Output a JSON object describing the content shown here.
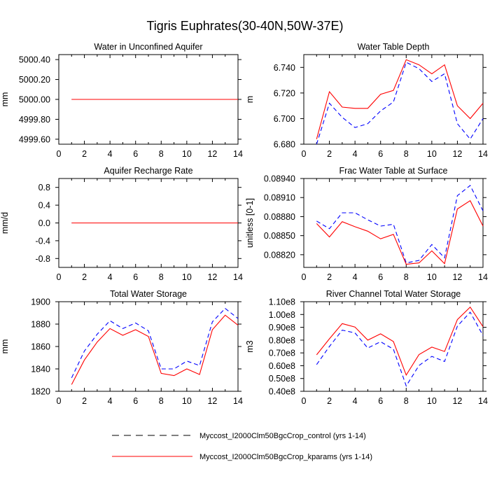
{
  "title": "Tigris Euphrates(30-40N,50W-37E)",
  "legend": {
    "control": "Myccost_I2000Clm50BgcCrop_control (yrs 1-14)",
    "kparams": "Myccost_I2000Clm50BgcCrop_kparams (yrs 1-14)"
  },
  "colors": {
    "control": "#0000ff",
    "kparams": "#ff0000"
  },
  "chart_data": [
    {
      "type": "line",
      "title": "Water in Unconfined Aquifer",
      "ylabel": "mm",
      "xlim": [
        0,
        14
      ],
      "ylim": [
        4999.55,
        5000.45
      ],
      "xticks": [
        "0",
        "2",
        "4",
        "6",
        "8",
        "10",
        "12",
        "14"
      ],
      "yticks": [
        4999.6,
        4999.8,
        5000.0,
        5000.2,
        5000.4
      ],
      "ytick_labels": [
        "4999.60",
        "4999.80",
        "5000.00",
        "5000.20",
        "5000.40"
      ],
      "x": [
        1,
        2,
        3,
        4,
        5,
        6,
        7,
        8,
        9,
        10,
        11,
        12,
        13,
        14
      ],
      "series": [
        {
          "name": "control",
          "values": [
            5000,
            5000,
            5000,
            5000,
            5000,
            5000,
            5000,
            5000,
            5000,
            5000,
            5000,
            5000,
            5000,
            5000
          ]
        },
        {
          "name": "kparams",
          "values": [
            5000,
            5000,
            5000,
            5000,
            5000,
            5000,
            5000,
            5000,
            5000,
            5000,
            5000,
            5000,
            5000,
            5000
          ]
        }
      ]
    },
    {
      "type": "line",
      "title": "Water Table Depth",
      "ylabel": "m",
      "xlim": [
        0,
        14
      ],
      "ylim": [
        6.68,
        6.75
      ],
      "xticks": [
        "0",
        "2",
        "4",
        "6",
        "8",
        "10",
        "12",
        "14"
      ],
      "yticks": [
        6.68,
        6.7,
        6.72,
        6.74
      ],
      "ytick_labels": [
        "6.680",
        "6.700",
        "6.720",
        "6.740"
      ],
      "x": [
        1,
        2,
        3,
        4,
        5,
        6,
        7,
        8,
        9,
        10,
        11,
        12,
        13,
        14
      ],
      "series": [
        {
          "name": "control",
          "values": [
            6.68,
            6.712,
            6.701,
            6.693,
            6.696,
            6.706,
            6.713,
            6.744,
            6.739,
            6.729,
            6.735,
            6.696,
            6.684,
            6.7
          ]
        },
        {
          "name": "kparams",
          "values": [
            6.684,
            6.721,
            6.709,
            6.708,
            6.708,
            6.719,
            6.722,
            6.746,
            6.742,
            6.735,
            6.742,
            6.71,
            6.7,
            6.712
          ]
        }
      ]
    },
    {
      "type": "line",
      "title": "Aquifer Recharge Rate",
      "ylabel": "mm/d",
      "xlim": [
        0,
        14
      ],
      "ylim": [
        -1,
        1
      ],
      "xticks": [
        "0",
        "2",
        "4",
        "6",
        "8",
        "10",
        "12",
        "14"
      ],
      "yticks": [
        -0.8,
        -0.4,
        0,
        0.4,
        0.8
      ],
      "ytick_labels": [
        "-0.8",
        "-0.4",
        "0.0",
        "0.4",
        "0.8"
      ],
      "x": [
        1,
        2,
        3,
        4,
        5,
        6,
        7,
        8,
        9,
        10,
        11,
        12,
        13,
        14
      ],
      "series": [
        {
          "name": "control",
          "values": [
            0,
            0,
            0,
            0,
            0,
            0,
            0,
            0,
            0,
            0,
            0,
            0,
            0,
            0
          ]
        },
        {
          "name": "kparams",
          "values": [
            0,
            0,
            0,
            0,
            0,
            0,
            0,
            0,
            0,
            0,
            0,
            0,
            0,
            0
          ]
        }
      ]
    },
    {
      "type": "line",
      "title": "Frac Water Table at Surface",
      "ylabel": "unitless [0-1]",
      "xlim": [
        0,
        14
      ],
      "ylim": [
        0.088,
        0.0894
      ],
      "xticks": [
        "0",
        "2",
        "4",
        "6",
        "8",
        "10",
        "12",
        "14"
      ],
      "yticks": [
        0.0882,
        0.0885,
        0.0888,
        0.0891,
        0.0894
      ],
      "ytick_labels": [
        "0.08820",
        "0.08850",
        "0.08880",
        "0.08910",
        "0.08940"
      ],
      "x": [
        1,
        2,
        3,
        4,
        5,
        6,
        7,
        8,
        9,
        10,
        11,
        12,
        13,
        14
      ],
      "series": [
        {
          "name": "control",
          "values": [
            0.08873,
            0.08861,
            0.08886,
            0.08886,
            0.08875,
            0.08865,
            0.08868,
            0.08807,
            0.08811,
            0.08836,
            0.08815,
            0.08913,
            0.08929,
            0.08889
          ]
        },
        {
          "name": "kparams",
          "values": [
            0.08869,
            0.08848,
            0.08872,
            0.08864,
            0.08857,
            0.08845,
            0.08852,
            0.08805,
            0.08807,
            0.08826,
            0.08806,
            0.08892,
            0.08905,
            0.08865
          ]
        }
      ]
    },
    {
      "type": "line",
      "title": "Total Water Storage",
      "ylabel": "mm",
      "xlim": [
        0,
        14
      ],
      "ylim": [
        1820,
        1900
      ],
      "xticks": [
        "0",
        "2",
        "4",
        "6",
        "8",
        "10",
        "12",
        "14"
      ],
      "yticks": [
        1820,
        1840,
        1860,
        1880,
        1900
      ],
      "ytick_labels": [
        "1820",
        "1840",
        "1860",
        "1880",
        "1900"
      ],
      "x": [
        1,
        2,
        3,
        4,
        5,
        6,
        7,
        8,
        9,
        10,
        11,
        12,
        13,
        14
      ],
      "series": [
        {
          "name": "control",
          "values": [
            1832,
            1856,
            1871,
            1883,
            1876,
            1881,
            1874,
            1840,
            1840,
            1847,
            1843,
            1882,
            1894,
            1885
          ]
        },
        {
          "name": "kparams",
          "values": [
            1826,
            1848,
            1864,
            1876,
            1870,
            1875,
            1869,
            1836,
            1834,
            1840,
            1835,
            1875,
            1888,
            1879
          ]
        }
      ]
    },
    {
      "type": "line",
      "title": "River Channel Total Water Storage",
      "ylabel": "m3",
      "xlim": [
        0,
        14
      ],
      "ylim": [
        40000000.0,
        110000000.0
      ],
      "xticks": [
        "0",
        "2",
        "4",
        "6",
        "8",
        "10",
        "12",
        "14"
      ],
      "yticks": [
        40000000.0,
        50000000.0,
        60000000.0,
        70000000.0,
        80000000.0,
        90000000.0,
        100000000.0,
        110000000.0
      ],
      "ytick_labels": [
        "0.40e8",
        "0.50e8",
        "0.60e8",
        "0.70e8",
        "0.80e8",
        "0.90e8",
        "1.00e8",
        "1.10e8"
      ],
      "x": [
        1,
        2,
        3,
        4,
        5,
        6,
        7,
        8,
        9,
        10,
        11,
        12,
        13,
        14
      ],
      "series": [
        {
          "name": "control",
          "values": [
            60900000.0,
            75000000.0,
            87800000.0,
            85600000.0,
            73800000.0,
            78700000.0,
            72900000.0,
            44200000.0,
            60200000.0,
            67300000.0,
            63300000.0,
            90900000.0,
            101800000.0,
            83600000.0
          ]
        },
        {
          "name": "kparams",
          "values": [
            68500000.0,
            81000000.0,
            92900000.0,
            90200000.0,
            80000000.0,
            84900000.0,
            78900000.0,
            52700000.0,
            68700000.0,
            74500000.0,
            71100000.0,
            96000000.0,
            105800000.0,
            90500000.0
          ]
        }
      ]
    }
  ]
}
